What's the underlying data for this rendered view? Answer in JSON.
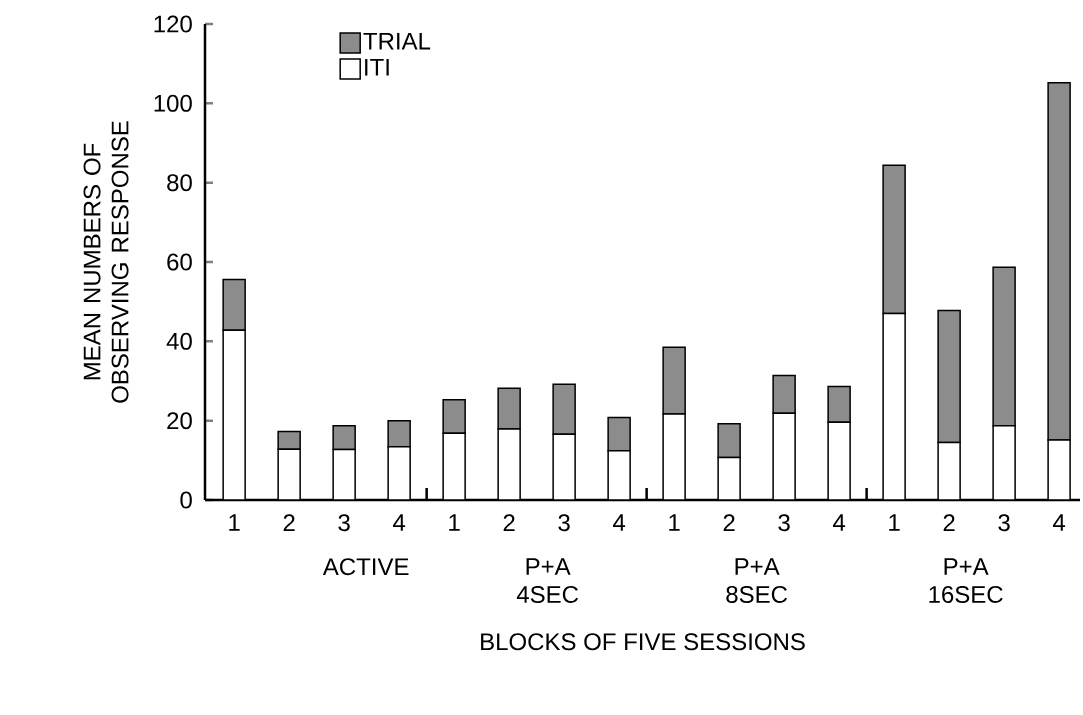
{
  "chart_data": {
    "type": "bar",
    "stacked": true,
    "xlabel": "BLOCKS OF FIVE SESSIONS",
    "ylabel": "MEAN NUMBERS OF OBSERVING RESPONSE",
    "categories": [
      "1",
      "2",
      "3",
      "4",
      "1",
      "2",
      "3",
      "4",
      "1",
      "2",
      "3",
      "4",
      "1",
      "2",
      "3",
      "4"
    ],
    "series": [
      {
        "name": "ITI",
        "color": "#ffffff",
        "values": [
          42.8,
          12.8,
          12.7,
          13.4,
          16.8,
          17.9,
          16.6,
          12.4,
          21.7,
          10.7,
          21.9,
          19.6,
          47.0,
          14.5,
          18.7,
          15.1
        ]
      },
      {
        "name": "TRIAL",
        "color": "#8c8c8c",
        "values": [
          12.8,
          4.5,
          6.0,
          6.6,
          8.5,
          10.3,
          12.6,
          8.4,
          16.8,
          8.5,
          9.5,
          9.0,
          37.4,
          33.3,
          40.0,
          90.1
        ]
      }
    ],
    "annotations": [
      "ACTIVE",
      "P+A 4SEC",
      "P+A 8SEC",
      "P+A 16SEC"
    ],
    "ylim": [
      0,
      120
    ],
    "yticks": [
      0,
      20,
      40,
      60,
      80,
      100,
      120
    ],
    "legend": "top left"
  }
}
